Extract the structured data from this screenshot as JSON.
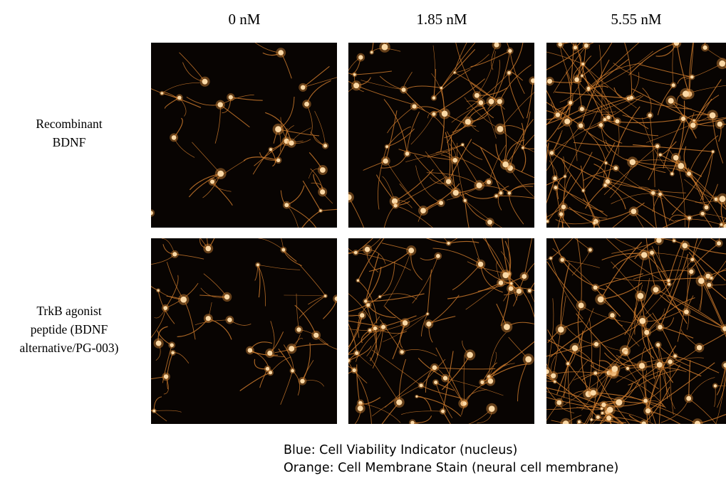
{
  "columns": [
    "0 nM",
    "1.85 nM",
    "5.55 nM"
  ],
  "rows": [
    {
      "label_lines": [
        "Recombinant",
        "BDNF"
      ]
    },
    {
      "label_lines": [
        "TrkB agonist",
        "peptide (BDNF",
        "alternative/PG-003)"
      ]
    }
  ],
  "legend": [
    "Blue: Cell Viability Indicator  (nucleus)",
    "Orange: Cell Membrane Stain (neural cell membrane)"
  ]
}
